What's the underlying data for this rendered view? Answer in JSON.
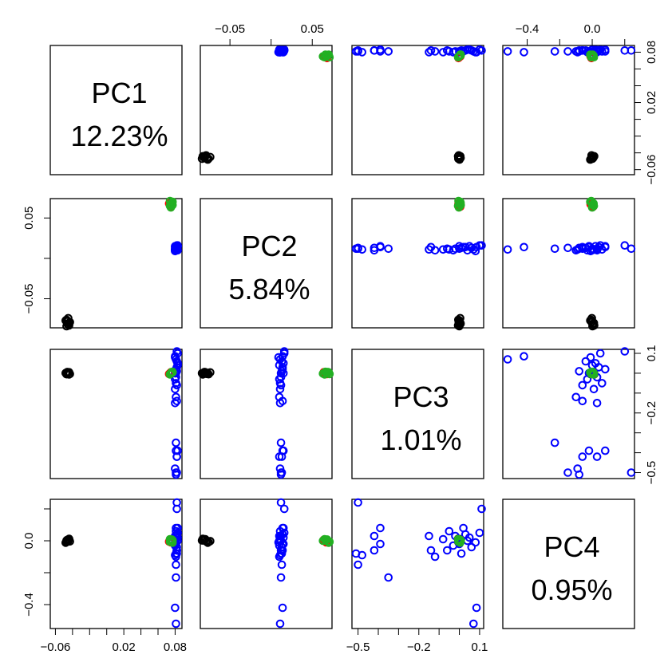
{
  "chart_data": {
    "type": "scatter",
    "title": "",
    "variables": [
      {
        "name": "PC1",
        "percent": "12.23%",
        "range": [
          -0.066,
          0.088
        ],
        "ticks": [
          -0.06,
          -0.04,
          -0.02,
          0.0,
          0.02,
          0.04,
          0.06,
          0.08
        ],
        "tick_labels": {
          "-0.06": "−0.06",
          "0.02": "0.02",
          "0.08": "0.08"
        },
        "left_axis_labels": {
          "-0.06": "−0.06",
          "0.02": "0.02",
          "0.08": "0.08"
        }
      },
      {
        "name": "PC2",
        "percent": "5.84%",
        "range": [
          -0.086,
          0.074
        ],
        "ticks": [
          -0.1,
          -0.05,
          0.0,
          0.05
        ],
        "tick_labels": {
          "-0.05": "−0.05",
          "0.05": "0.05"
        },
        "left_axis_labels": {
          "-0.05": "−0.05",
          "0.05": "0.05"
        }
      },
      {
        "name": "PC3",
        "percent": "1.01%",
        "range": [
          -0.53,
          0.12
        ],
        "ticks": [
          -0.5,
          -0.4,
          -0.3,
          -0.2,
          -0.1,
          0.0,
          0.1
        ],
        "tick_labels": {
          "-0.5": "−0.5",
          "-0.2": "−0.2",
          "0.1": "0.1"
        },
        "left_axis_labels": {
          "-0.5": "−0.5",
          "-0.2": "−0.2",
          "0.1": "0.1"
        }
      },
      {
        "name": "PC4",
        "percent": "0.95%",
        "range": [
          -0.55,
          0.26
        ],
        "ticks": [
          -0.6,
          -0.4,
          -0.2,
          0.0,
          0.2
        ],
        "tick_labels": {
          "-0.4": "−0.4",
          "0.0": "0.0"
        },
        "left_axis_labels": {
          "-0.4": "−0.4",
          "0.0": "0.0"
        }
      }
    ],
    "groups": [
      {
        "color": "#000000",
        "points": [
          [
            -0.046,
            -0.078,
            0.0,
            0.0
          ],
          [
            -0.044,
            -0.08,
            0.005,
            0.01
          ],
          [
            -0.047,
            -0.076,
            -0.005,
            -0.008
          ],
          [
            -0.045,
            -0.082,
            0.002,
            0.004
          ],
          [
            -0.043,
            -0.079,
            -0.003,
            -0.004
          ],
          [
            -0.046,
            -0.081,
            0.006,
            0.006
          ],
          [
            -0.048,
            -0.077,
            0.001,
            -0.012
          ],
          [
            -0.044,
            -0.083,
            -0.006,
            0.012
          ],
          [
            -0.045,
            -0.074,
            0.004,
            -0.002
          ],
          [
            -0.047,
            -0.084,
            0.0,
            0.002
          ]
        ]
      },
      {
        "color": "#0000ff",
        "points": [
          [
            0.081,
            0.012,
            0.0,
            0.0
          ],
          [
            0.082,
            0.014,
            0.03,
            0.04
          ],
          [
            0.08,
            0.01,
            -0.03,
            -0.03
          ],
          [
            0.083,
            0.015,
            0.05,
            0.02
          ],
          [
            0.081,
            0.011,
            -0.05,
            0.06
          ],
          [
            0.082,
            0.013,
            0.01,
            -0.08
          ],
          [
            0.08,
            0.009,
            0.08,
            -0.01
          ],
          [
            0.083,
            0.016,
            0.1,
            0.05
          ],
          [
            0.081,
            0.012,
            -0.02,
            0.03
          ],
          [
            0.082,
            0.013,
            0.06,
            -0.04
          ],
          [
            0.08,
            0.011,
            -0.08,
            0.01
          ],
          [
            0.081,
            0.014,
            0.02,
            0.08
          ],
          [
            0.082,
            0.012,
            -0.06,
            -0.06
          ],
          [
            0.083,
            0.01,
            0.04,
            0.0
          ],
          [
            0.08,
            0.015,
            0.0,
            -0.02
          ],
          [
            0.081,
            0.01,
            -0.12,
            -0.1
          ],
          [
            0.082,
            0.014,
            -0.14,
            -0.06
          ],
          [
            0.08,
            0.011,
            -0.15,
            0.03
          ],
          [
            0.081,
            0.012,
            -0.35,
            -0.23
          ],
          [
            0.083,
            0.015,
            -0.39,
            0.08
          ],
          [
            0.082,
            0.01,
            -0.42,
            0.03
          ],
          [
            0.081,
            0.013,
            -0.5,
            -0.15
          ],
          [
            0.082,
            0.012,
            -0.5,
            0.24
          ],
          [
            0.08,
            0.014,
            0.085,
            -0.42
          ],
          [
            0.081,
            0.011,
            0.07,
            -0.52
          ],
          [
            0.082,
            0.016,
            0.11,
            0.2
          ],
          [
            0.081,
            0.012,
            -0.51,
            -0.08
          ],
          [
            0.08,
            0.011,
            -0.48,
            -0.09
          ],
          [
            0.082,
            0.013,
            -0.42,
            -0.06
          ],
          [
            0.081,
            0.014,
            -0.39,
            -0.02
          ]
        ]
      },
      {
        "color": "#ff0000",
        "points": [
          [
            0.074,
            0.066,
            0.0,
            0.0
          ],
          [
            0.075,
            0.064,
            0.005,
            0.006
          ],
          [
            0.073,
            0.068,
            -0.004,
            -0.005
          ],
          [
            0.075,
            0.067,
            0.003,
            -0.01
          ]
        ]
      },
      {
        "color": "#22b022",
        "points": [
          [
            0.075,
            0.067,
            0.0,
            0.005
          ],
          [
            0.076,
            0.069,
            0.006,
            -0.004
          ],
          [
            0.074,
            0.065,
            -0.006,
            0.01
          ],
          [
            0.077,
            0.07,
            0.004,
            -0.012
          ],
          [
            0.075,
            0.063,
            -0.002,
            0.0
          ],
          [
            0.076,
            0.068,
            0.002,
            0.008
          ],
          [
            0.074,
            0.071,
            -0.004,
            -0.006
          ],
          [
            0.077,
            0.066,
            0.007,
            0.003
          ]
        ]
      }
    ]
  }
}
